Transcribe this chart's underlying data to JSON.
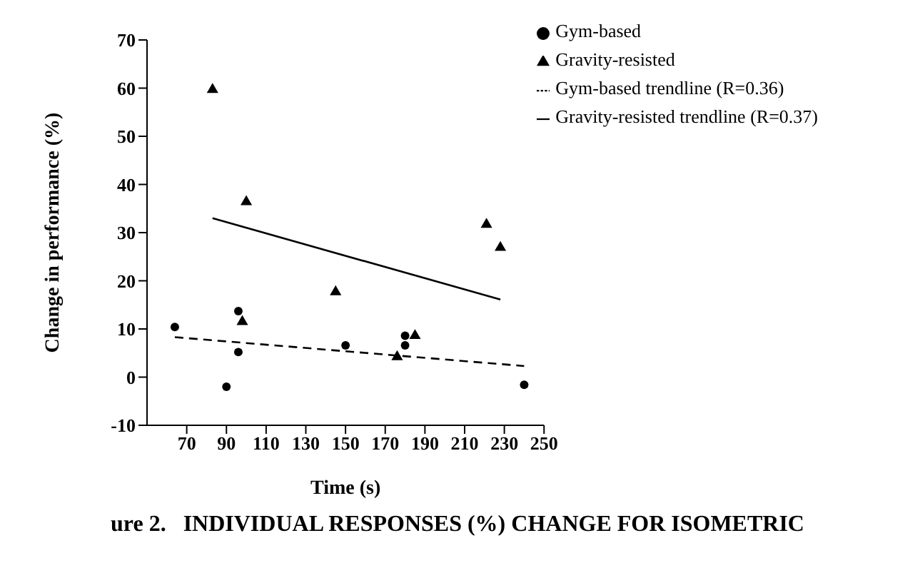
{
  "chart_data": {
    "type": "scatter",
    "xlabel": "Time (s)",
    "ylabel": "Change in performance (%)",
    "xlim": [
      50,
      250
    ],
    "xticks": [
      70,
      90,
      110,
      130,
      150,
      170,
      190,
      210,
      230,
      250
    ],
    "ylim": [
      -10,
      70
    ],
    "yticks": [
      -10,
      0,
      10,
      20,
      30,
      40,
      50,
      60,
      70
    ],
    "grid": false,
    "legend": "top right",
    "annotations": [
      "ure 2.   INDIVIDUAL RESPONSES (%) CHANGE FOR ISOMETRIC"
    ],
    "series": [
      {
        "name": "Gym-based",
        "marker": "circle",
        "color": "#000000",
        "x": [
          64,
          96,
          96,
          90,
          150,
          180,
          180,
          240
        ],
        "values": [
          10.4,
          13.7,
          5.2,
          -2,
          6.6,
          8.6,
          6.6,
          -1.6
        ]
      },
      {
        "name": "Gravity-resisted",
        "marker": "triangle",
        "color": "#000000",
        "x": [
          83,
          100,
          98,
          145,
          176,
          185,
          221,
          228
        ],
        "values": [
          59.7,
          36.4,
          11.5,
          17.7,
          4.2,
          8.6,
          31.7,
          26.9
        ]
      },
      {
        "name": "Gym-based trendline (R=0.36)",
        "type": "line",
        "line_style": "dashed",
        "marker": "none",
        "color": "#000000",
        "x": [
          64,
          240
        ],
        "values": [
          8.3,
          2.3
        ]
      },
      {
        "name": "Gravity-resisted trendline (R=0.37)",
        "type": "line",
        "line_style": "solid",
        "marker": "none",
        "color": "#000000",
        "x": [
          83,
          228
        ],
        "values": [
          33,
          16.1
        ]
      }
    ]
  }
}
